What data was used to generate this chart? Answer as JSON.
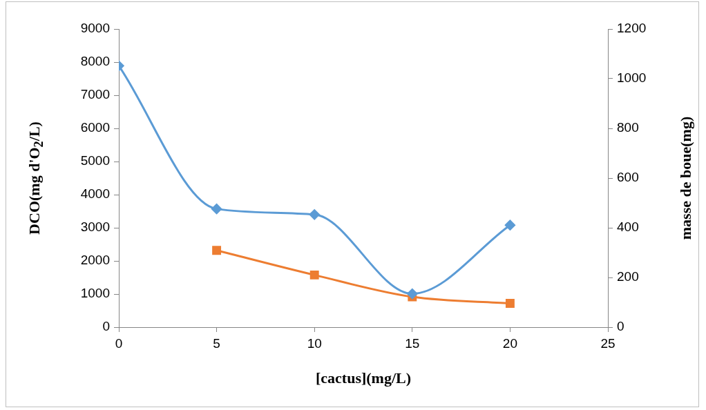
{
  "chart_data": {
    "type": "line",
    "xlabel": "[cactus](mg/L)",
    "ylabel": "DCO(mg d'O$_{2}$/L)",
    "y2label": "masse de boue(mg)",
    "xlim": [
      0,
      25
    ],
    "xticks": [
      0,
      5,
      10,
      15,
      20,
      25
    ],
    "ylim": [
      0,
      9000
    ],
    "yticks": [
      0,
      1000,
      2000,
      3000,
      4000,
      5000,
      6000,
      7000,
      8000,
      9000
    ],
    "y2lim": [
      0,
      1200
    ],
    "y2ticks": [
      0,
      200,
      400,
      600,
      800,
      1000,
      1200
    ],
    "grid": false,
    "legend": false,
    "series": [
      {
        "color": "#5b9bd5",
        "marker": "diamond",
        "x": [
          0,
          5,
          10,
          15,
          20
        ],
        "values": [
          7890,
          3570,
          3400,
          1010,
          3080
        ]
      },
      {
        "color": "#ed7d31",
        "marker": "square",
        "axis": "y2",
        "x": [
          5,
          10,
          15,
          20
        ],
        "values": [
          309,
          210,
          122,
          96
        ]
      }
    ]
  }
}
